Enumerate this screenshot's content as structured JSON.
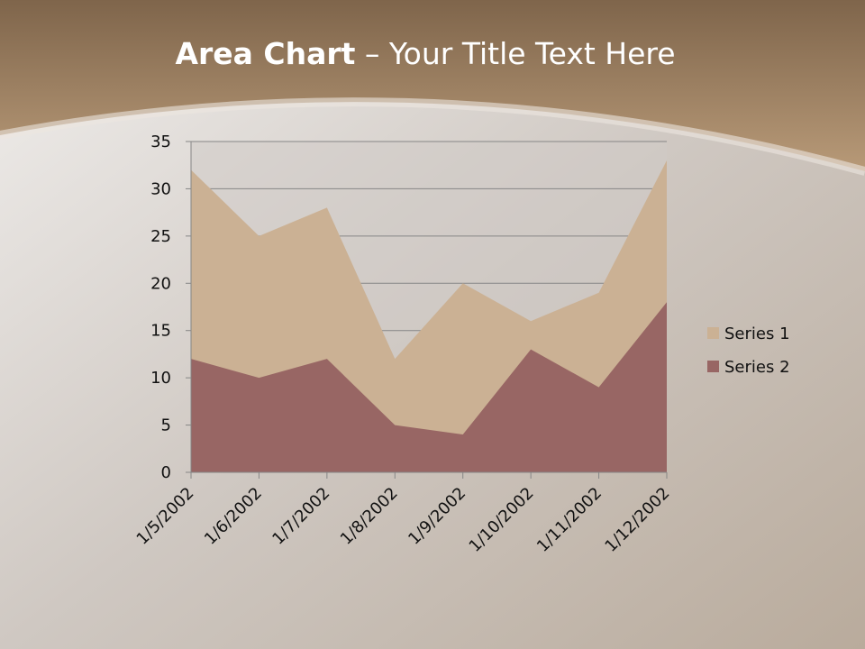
{
  "title": {
    "bold": "Area Chart",
    "rest": " – Your Title Text Here"
  },
  "colors": {
    "header": "#9c7b58",
    "series1": "#cbb194",
    "series2": "#986664",
    "plot_bg": "#cfcac6"
  },
  "chart_data": {
    "type": "area",
    "categories": [
      "1/5/2002",
      "1/6/2002",
      "1/7/2002",
      "1/8/2002",
      "1/9/2002",
      "1/10/2002",
      "1/11/2002",
      "1/12/2002"
    ],
    "series": [
      {
        "name": "Series 1",
        "values": [
          32,
          25,
          28,
          12,
          20,
          16,
          19,
          33
        ],
        "color": "#cbb194"
      },
      {
        "name": "Series 2",
        "values": [
          12,
          10,
          12,
          5,
          4,
          13,
          9,
          18
        ],
        "color": "#986664"
      }
    ],
    "ylim": [
      0,
      35
    ],
    "yticks": [
      0,
      5,
      10,
      15,
      20,
      25,
      30,
      35
    ],
    "grid": true,
    "legend": "right"
  }
}
